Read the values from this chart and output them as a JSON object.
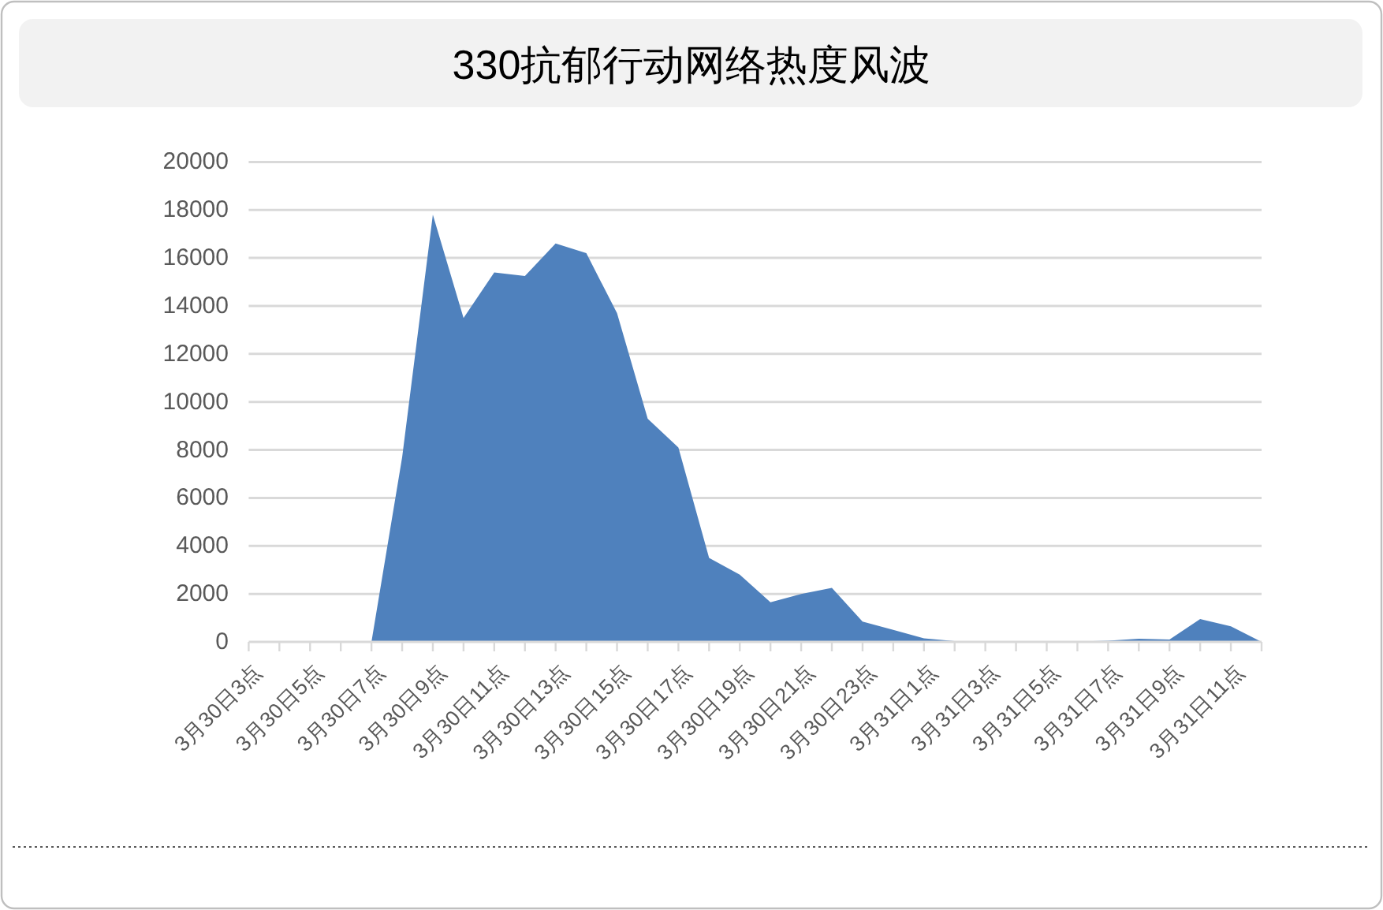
{
  "chart_data": {
    "type": "area",
    "title": "330抗郁行动网络热度风波",
    "categories": [
      "3月30日3点",
      null,
      "3月30日5点",
      null,
      "3月30日7点",
      null,
      "3月30日9点",
      null,
      "3月30日11点",
      null,
      "3月30日13点",
      null,
      "3月30日15点",
      null,
      "3月30日17点",
      null,
      "3月30日19点",
      null,
      "3月30日21点",
      null,
      "3月30日23点",
      null,
      "3月31日1点",
      null,
      "3月31日3点",
      null,
      "3月31日5点",
      null,
      "3月31日7点",
      null,
      "3月31日9点",
      null,
      "3月31日11点",
      null
    ],
    "values": [
      0,
      0,
      0,
      0,
      0,
      7700,
      17800,
      13500,
      15400,
      15250,
      16600,
      16200,
      13700,
      9300,
      8100,
      3500,
      2800,
      1650,
      2000,
      2250,
      850,
      500,
      150,
      30,
      0,
      0,
      0,
      20,
      50,
      130,
      100,
      950,
      650,
      0
    ],
    "color": "#4f81bd",
    "ylim": [
      0,
      20000
    ],
    "yticks": [
      0,
      2000,
      4000,
      6000,
      8000,
      10000,
      12000,
      14000,
      16000,
      18000,
      20000
    ],
    "grid": "y"
  }
}
